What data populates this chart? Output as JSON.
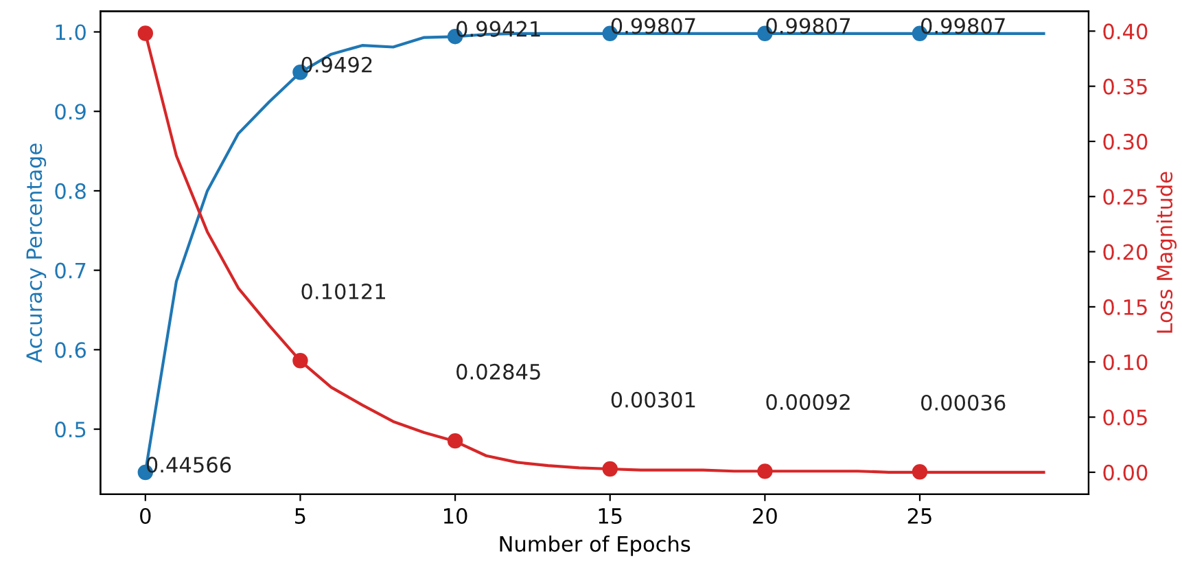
{
  "chart_data": {
    "type": "line",
    "xlabel": "Number of Epochs",
    "ylabel": "Accuracy Percentage",
    "y2label": "Loss Magnitude",
    "x": [
      0,
      1,
      2,
      3,
      4,
      5,
      6,
      7,
      8,
      9,
      10,
      11,
      12,
      13,
      14,
      15,
      16,
      17,
      18,
      19,
      20,
      21,
      22,
      23,
      24,
      25,
      26,
      27,
      28,
      29
    ],
    "series": [
      {
        "color": "#1f77b4",
        "marker": "none",
        "values": [
          0.446,
          0.686,
          0.8,
          0.872,
          0.912,
          0.949,
          0.972,
          0.983,
          0.981,
          0.993,
          0.994,
          0.997,
          0.998,
          0.998,
          0.998,
          0.998,
          0.998,
          0.998,
          0.998,
          0.998,
          0.998,
          0.998,
          0.998,
          0.998,
          0.998,
          0.998,
          0.998,
          0.998,
          0.998,
          0.998
        ]
      },
      {
        "axis": "y2",
        "color": "#d62728",
        "marker": "none",
        "values": [
          0.398,
          0.287,
          0.218,
          0.167,
          0.133,
          0.101,
          0.077,
          0.061,
          0.046,
          0.036,
          0.028,
          0.015,
          0.009,
          0.006,
          0.004,
          0.003,
          0.002,
          0.002,
          0.002,
          0.001,
          0.001,
          0.001,
          0.001,
          0.001,
          0.0,
          0.0,
          0.0,
          0.0,
          0.0,
          0.0
        ]
      },
      {
        "type": "scatter",
        "color": "#1f77b4",
        "marker": "circle",
        "x": [
          0,
          5,
          10,
          15,
          20,
          25
        ],
        "values": [
          0.44566,
          0.9492,
          0.99421,
          0.99807,
          0.99807,
          0.99807
        ],
        "value_labels": [
          "0.44566",
          "0.9492",
          "0.99421",
          "0.99807",
          "0.99807",
          "0.99807"
        ]
      },
      {
        "type": "scatter",
        "axis": "y2",
        "color": "#d62728",
        "marker": "circle",
        "x": [
          0,
          5,
          10,
          15,
          20,
          25
        ],
        "values": [
          0.398,
          0.10121,
          0.02845,
          0.00301,
          0.00092,
          0.00036
        ],
        "value_labels": [
          null,
          "0.10121",
          "0.02845",
          "0.00301",
          "0.00092",
          "0.00036"
        ]
      }
    ],
    "xlim": [
      -1.45,
      30.45
    ],
    "xticks": [
      0,
      5,
      10,
      15,
      20,
      25
    ],
    "ylim": [
      0.418,
      1.026
    ],
    "yticks": [
      0.5,
      0.6,
      0.7,
      0.8,
      0.9,
      {
        "value": 1,
        "label": "1.0"
      }
    ],
    "y2lim": [
      -0.02,
      0.418
    ],
    "y2ticks": [
      {
        "value": 0,
        "label": "0.00"
      },
      {
        "value": 0.05,
        "label": "0.05"
      },
      {
        "value": 0.1,
        "label": "0.10"
      },
      {
        "value": 0.15,
        "label": "0.15"
      },
      {
        "value": 0.2,
        "label": "0.20"
      },
      {
        "value": 0.25,
        "label": "0.25"
      },
      {
        "value": 0.3,
        "label": "0.30"
      },
      {
        "value": 0.35,
        "label": "0.35"
      },
      {
        "value": 0.4,
        "label": "0.40"
      }
    ],
    "line_style": "solid"
  }
}
